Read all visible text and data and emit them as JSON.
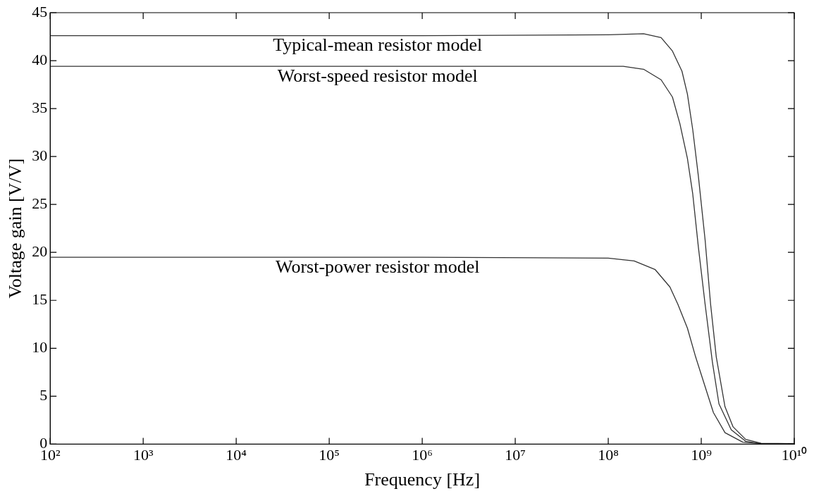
{
  "chart_data": {
    "type": "line",
    "xlabel": "Frequency [Hz]",
    "ylabel": "Voltage gain [V/V]",
    "log": "x",
    "grid": false,
    "legend": false,
    "marker": "none",
    "line_style": "solid",
    "xlim": [
      100,
      10000000000
    ],
    "ylim": [
      0,
      45
    ],
    "xticks": [
      {
        "value": 100,
        "label": "10²"
      },
      {
        "value": 1000,
        "label": "10³"
      },
      {
        "value": 10000,
        "label": "10⁴"
      },
      {
        "value": 100000,
        "label": "10⁵"
      },
      {
        "value": 1000000,
        "label": "10⁶"
      },
      {
        "value": 10000000,
        "label": "10⁷"
      },
      {
        "value": 100000000,
        "label": "10⁸"
      },
      {
        "value": 1000000000,
        "label": "10⁹"
      },
      {
        "value": 10000000000,
        "label": "10¹⁰"
      }
    ],
    "yticks": [
      0,
      5,
      10,
      15,
      20,
      25,
      30,
      35,
      40,
      45
    ],
    "series": [
      {
        "name": "Typical-mean resistor model",
        "color": "#333333",
        "x": [
          100,
          1000000,
          100000000,
          240000000,
          370000000,
          490000000,
          620000000,
          710000000,
          810000000,
          930000000,
          1100000000,
          1260000000,
          1450000000,
          1800000000,
          2200000000,
          3000000000,
          4400000000,
          10000000000
        ],
        "values": [
          42.6,
          42.6,
          42.7,
          42.8,
          42.4,
          41.0,
          38.9,
          36.5,
          32.8,
          28.0,
          21.3,
          14.6,
          9.1,
          3.9,
          1.8,
          0.5,
          0.1,
          0.05
        ]
      },
      {
        "name": "Worst-speed resistor model",
        "color": "#333333",
        "x": [
          100,
          1000000,
          145000000,
          240000000,
          370000000,
          490000000,
          590000000,
          710000000,
          810000000,
          930000000,
          1100000000,
          1320000000,
          1550000000,
          2100000000,
          3000000000,
          4400000000,
          10000000000
        ],
        "values": [
          39.4,
          39.4,
          39.4,
          39.1,
          38.0,
          36.2,
          33.4,
          29.8,
          26.1,
          20.6,
          14.6,
          8.5,
          4.2,
          1.5,
          0.3,
          0.05,
          0.05
        ]
      },
      {
        "name": "Worst-power resistor model",
        "color": "#333333",
        "x": [
          100,
          1000000,
          100000000,
          190000000,
          320000000,
          460000000,
          560000000,
          710000000,
          870000000,
          1100000000,
          1350000000,
          1800000000,
          2800000000,
          4400000000,
          10000000000
        ],
        "values": [
          19.5,
          19.5,
          19.4,
          19.1,
          18.2,
          16.4,
          14.6,
          12.1,
          9.1,
          6.0,
          3.3,
          1.2,
          0.2,
          0.05,
          0.05
        ]
      }
    ]
  }
}
